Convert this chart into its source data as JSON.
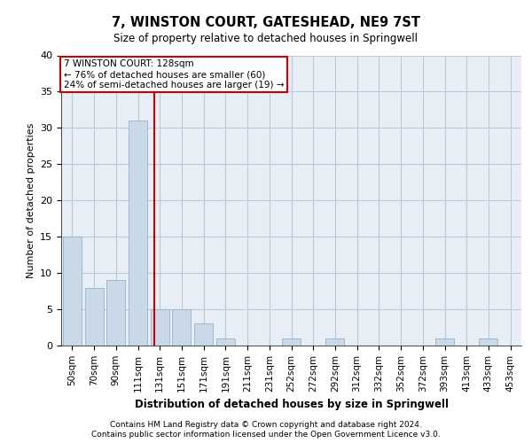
{
  "title": "7, WINSTON COURT, GATESHEAD, NE9 7ST",
  "subtitle": "Size of property relative to detached houses in Springwell",
  "xlabel": "Distribution of detached houses by size in Springwell",
  "ylabel": "Number of detached properties",
  "categories": [
    "50sqm",
    "70sqm",
    "90sqm",
    "111sqm",
    "131sqm",
    "151sqm",
    "171sqm",
    "191sqm",
    "211sqm",
    "231sqm",
    "252sqm",
    "272sqm",
    "292sqm",
    "312sqm",
    "332sqm",
    "352sqm",
    "372sqm",
    "393sqm",
    "413sqm",
    "433sqm",
    "453sqm"
  ],
  "values": [
    15,
    8,
    9,
    31,
    5,
    5,
    3,
    1,
    0,
    0,
    1,
    0,
    1,
    0,
    0,
    0,
    0,
    1,
    0,
    1,
    0
  ],
  "bar_color": "#c9d9e8",
  "bar_edge_color": "#a0b8cc",
  "red_line_x": 3.75,
  "annotation_title": "7 WINSTON COURT: 128sqm",
  "annotation_line1": "← 76% of detached houses are smaller (60)",
  "annotation_line2": "24% of semi-detached houses are larger (19) →",
  "annotation_box_color": "#ffffff",
  "annotation_box_edge_color": "#cc0000",
  "red_line_color": "#cc0000",
  "ylim": [
    0,
    40
  ],
  "yticks": [
    0,
    5,
    10,
    15,
    20,
    25,
    30,
    35,
    40
  ],
  "grid_color": "#c0c8d8",
  "bg_color": "#e8eef5",
  "footer1": "Contains HM Land Registry data © Crown copyright and database right 2024.",
  "footer2": "Contains public sector information licensed under the Open Government Licence v3.0."
}
